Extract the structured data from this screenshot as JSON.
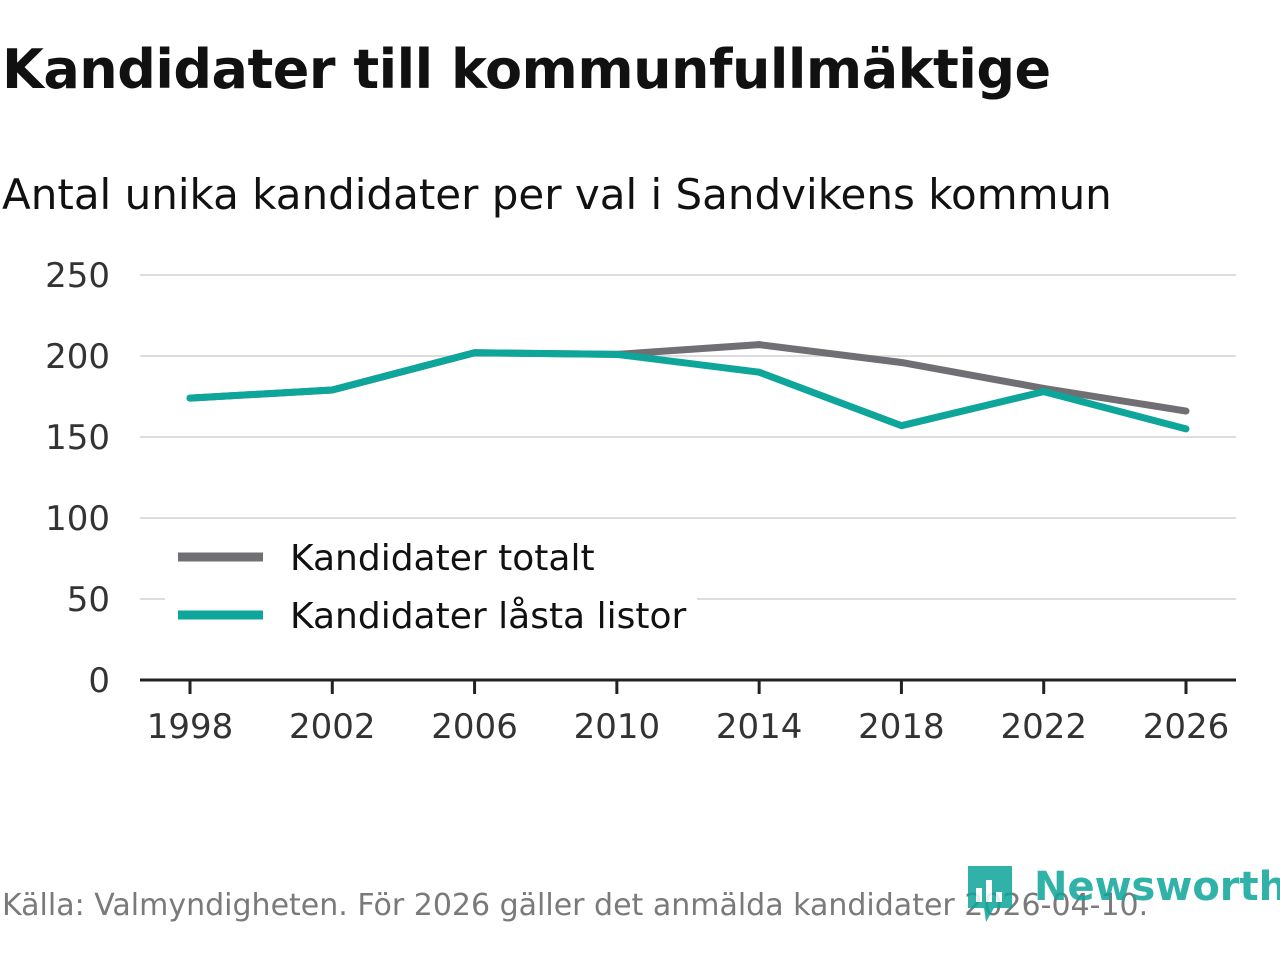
{
  "title": "Kandidater till kommunfullmäktige",
  "subtitle": "Antal unika kandidater per val i Sandvikens kommun",
  "source": "Källa: Valmyndigheten. För 2026 gäller det anmälda kandidater 2026-04-10.",
  "logo_text": "Newsworthy",
  "colors": {
    "totalt": "#707074",
    "lasta": "#0ea59a",
    "grid": "#dddddd",
    "axis": "#222222"
  },
  "chart_data": {
    "type": "line",
    "title": "Kandidater till kommunfullmäktige",
    "subtitle": "Antal unika kandidater per val i Sandvikens kommun",
    "x": [
      "1998",
      "2002",
      "2006",
      "2010",
      "2014",
      "2018",
      "2022",
      "2026"
    ],
    "yticks": [
      "0",
      "50",
      "100",
      "150",
      "200",
      "250"
    ],
    "ylim": [
      0,
      250
    ],
    "legend_position": "bottom-left",
    "series": [
      {
        "name": "Kandidater totalt",
        "color": "#707074",
        "values": [
          174,
          179,
          202,
          201,
          207,
          196,
          180,
          166
        ]
      },
      {
        "name": "Kandidater låsta listor",
        "color": "#0ea59a",
        "values": [
          174,
          179,
          202,
          201,
          190,
          157,
          178,
          155
        ]
      }
    ]
  }
}
